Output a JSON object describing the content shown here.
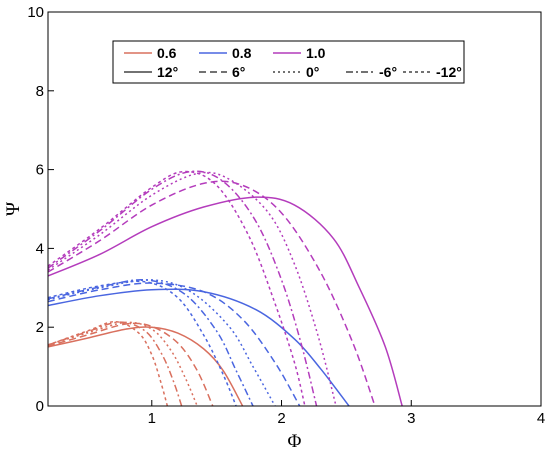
{
  "chart_data": {
    "type": "line",
    "xlabel": "Φ",
    "ylabel": "Ψ",
    "xlim": [
      0.2,
      4
    ],
    "ylim": [
      0,
      10
    ],
    "x_ticks": [
      "1",
      "2",
      "3",
      "4"
    ],
    "y_ticks": [
      "0",
      "2",
      "4",
      "6",
      "8",
      "10"
    ],
    "grid": false,
    "legend_position": "top",
    "legend": {
      "colors": [
        {
          "label": "0.6",
          "color": "#d9705e"
        },
        {
          "label": "0.8",
          "color": "#4a66e0"
        },
        {
          "label": "1.0",
          "color": "#b43cbc"
        }
      ],
      "angles": [
        {
          "label": "12°",
          "dash": "solid"
        },
        {
          "label": "6°",
          "dash": "dash"
        },
        {
          "label": "0°",
          "dash": "dot"
        },
        {
          "label": "-6°",
          "dash": "dashdot"
        },
        {
          "label": "-12°",
          "dash": "shortdash"
        }
      ]
    },
    "series": [
      {
        "group": "0.6",
        "angle": "12°",
        "color": "#d9705e",
        "dash": "solid",
        "points": [
          [
            0.2,
            1.5
          ],
          [
            0.5,
            1.72
          ],
          [
            0.8,
            1.95
          ],
          [
            1.0,
            2.0
          ],
          [
            1.2,
            1.85
          ],
          [
            1.4,
            1.45
          ],
          [
            1.55,
            0.9
          ],
          [
            1.7,
            0.0
          ]
        ]
      },
      {
        "group": "0.6",
        "angle": "6°",
        "color": "#d9705e",
        "dash": "dash",
        "points": [
          [
            0.2,
            1.52
          ],
          [
            0.5,
            1.8
          ],
          [
            0.8,
            2.08
          ],
          [
            1.0,
            2.02
          ],
          [
            1.2,
            1.6
          ],
          [
            1.35,
            0.9
          ],
          [
            1.47,
            0.0
          ]
        ]
      },
      {
        "group": "0.6",
        "angle": "0°",
        "color": "#d9705e",
        "dash": "dot",
        "points": [
          [
            0.2,
            1.55
          ],
          [
            0.5,
            1.85
          ],
          [
            0.8,
            2.12
          ],
          [
            1.0,
            1.95
          ],
          [
            1.15,
            1.4
          ],
          [
            1.26,
            0.7
          ],
          [
            1.35,
            0.0
          ]
        ]
      },
      {
        "group": "0.6",
        "angle": "-6°",
        "color": "#d9705e",
        "dash": "dashdot",
        "points": [
          [
            0.2,
            1.55
          ],
          [
            0.5,
            1.88
          ],
          [
            0.75,
            2.13
          ],
          [
            0.95,
            1.9
          ],
          [
            1.08,
            1.3
          ],
          [
            1.17,
            0.6
          ],
          [
            1.23,
            0.0
          ]
        ]
      },
      {
        "group": "0.6",
        "angle": "-12°",
        "color": "#d9705e",
        "dash": "shortdash",
        "points": [
          [
            0.2,
            1.55
          ],
          [
            0.5,
            1.9
          ],
          [
            0.72,
            2.14
          ],
          [
            0.9,
            1.85
          ],
          [
            1.0,
            1.3
          ],
          [
            1.07,
            0.6
          ],
          [
            1.12,
            0.0
          ]
        ]
      },
      {
        "group": "0.8",
        "angle": "12°",
        "color": "#4a66e0",
        "dash": "solid",
        "points": [
          [
            0.2,
            2.55
          ],
          [
            0.6,
            2.8
          ],
          [
            1.0,
            2.95
          ],
          [
            1.4,
            2.9
          ],
          [
            1.8,
            2.45
          ],
          [
            2.1,
            1.7
          ],
          [
            2.3,
            0.95
          ],
          [
            2.52,
            0.0
          ]
        ]
      },
      {
        "group": "0.8",
        "angle": "6°",
        "color": "#4a66e0",
        "dash": "dash",
        "points": [
          [
            0.2,
            2.65
          ],
          [
            0.6,
            2.95
          ],
          [
            1.0,
            3.12
          ],
          [
            1.4,
            2.9
          ],
          [
            1.7,
            2.2
          ],
          [
            1.95,
            1.1
          ],
          [
            2.14,
            0.0
          ]
        ]
      },
      {
        "group": "0.8",
        "angle": "0°",
        "color": "#4a66e0",
        "dash": "dot",
        "points": [
          [
            0.2,
            2.7
          ],
          [
            0.6,
            3.0
          ],
          [
            1.0,
            3.2
          ],
          [
            1.3,
            2.9
          ],
          [
            1.6,
            2.0
          ],
          [
            1.78,
            1.0
          ],
          [
            1.95,
            0.0
          ]
        ]
      },
      {
        "group": "0.8",
        "angle": "-6°",
        "color": "#4a66e0",
        "dash": "dashdot",
        "points": [
          [
            0.2,
            2.72
          ],
          [
            0.6,
            3.02
          ],
          [
            0.95,
            3.2
          ],
          [
            1.25,
            2.85
          ],
          [
            1.5,
            1.9
          ],
          [
            1.65,
            0.9
          ],
          [
            1.78,
            0.0
          ]
        ]
      },
      {
        "group": "0.8",
        "angle": "-12°",
        "color": "#4a66e0",
        "dash": "shortdash",
        "points": [
          [
            0.2,
            2.75
          ],
          [
            0.6,
            3.05
          ],
          [
            0.95,
            3.15
          ],
          [
            1.2,
            2.75
          ],
          [
            1.4,
            1.8
          ],
          [
            1.55,
            0.8
          ],
          [
            1.65,
            0.0
          ]
        ]
      },
      {
        "group": "1.0",
        "angle": "12°",
        "color": "#b43cbc",
        "dash": "solid",
        "points": [
          [
            0.2,
            3.3
          ],
          [
            0.6,
            3.85
          ],
          [
            1.0,
            4.55
          ],
          [
            1.4,
            5.05
          ],
          [
            1.8,
            5.3
          ],
          [
            2.1,
            5.1
          ],
          [
            2.4,
            4.25
          ],
          [
            2.6,
            3.0
          ],
          [
            2.8,
            1.5
          ],
          [
            2.93,
            0.0
          ]
        ]
      },
      {
        "group": "1.0",
        "angle": "6°",
        "color": "#b43cbc",
        "dash": "dash",
        "points": [
          [
            0.2,
            3.4
          ],
          [
            0.6,
            4.2
          ],
          [
            1.0,
            5.1
          ],
          [
            1.4,
            5.65
          ],
          [
            1.7,
            5.6
          ],
          [
            2.0,
            4.9
          ],
          [
            2.3,
            3.4
          ],
          [
            2.55,
            1.6
          ],
          [
            2.72,
            0.0
          ]
        ]
      },
      {
        "group": "1.0",
        "angle": "0°",
        "color": "#b43cbc",
        "dash": "dot",
        "points": [
          [
            0.2,
            3.45
          ],
          [
            0.6,
            4.35
          ],
          [
            1.0,
            5.35
          ],
          [
            1.35,
            5.9
          ],
          [
            1.6,
            5.75
          ],
          [
            1.9,
            4.9
          ],
          [
            2.1,
            3.6
          ],
          [
            2.28,
            1.8
          ],
          [
            2.42,
            0.0
          ]
        ]
      },
      {
        "group": "1.0",
        "angle": "-6°",
        "color": "#b43cbc",
        "dash": "dashdot",
        "points": [
          [
            0.2,
            3.5
          ],
          [
            0.6,
            4.45
          ],
          [
            1.0,
            5.5
          ],
          [
            1.3,
            5.95
          ],
          [
            1.55,
            5.7
          ],
          [
            1.8,
            4.7
          ],
          [
            2.0,
            3.2
          ],
          [
            2.15,
            1.6
          ],
          [
            2.27,
            0.0
          ]
        ]
      },
      {
        "group": "1.0",
        "angle": "-12°",
        "color": "#b43cbc",
        "dash": "shortdash",
        "points": [
          [
            0.2,
            3.55
          ],
          [
            0.6,
            4.5
          ],
          [
            1.0,
            5.55
          ],
          [
            1.25,
            5.95
          ],
          [
            1.5,
            5.6
          ],
          [
            1.75,
            4.3
          ],
          [
            1.95,
            2.6
          ],
          [
            2.1,
            1.1
          ],
          [
            2.18,
            0.0
          ]
        ]
      }
    ]
  }
}
